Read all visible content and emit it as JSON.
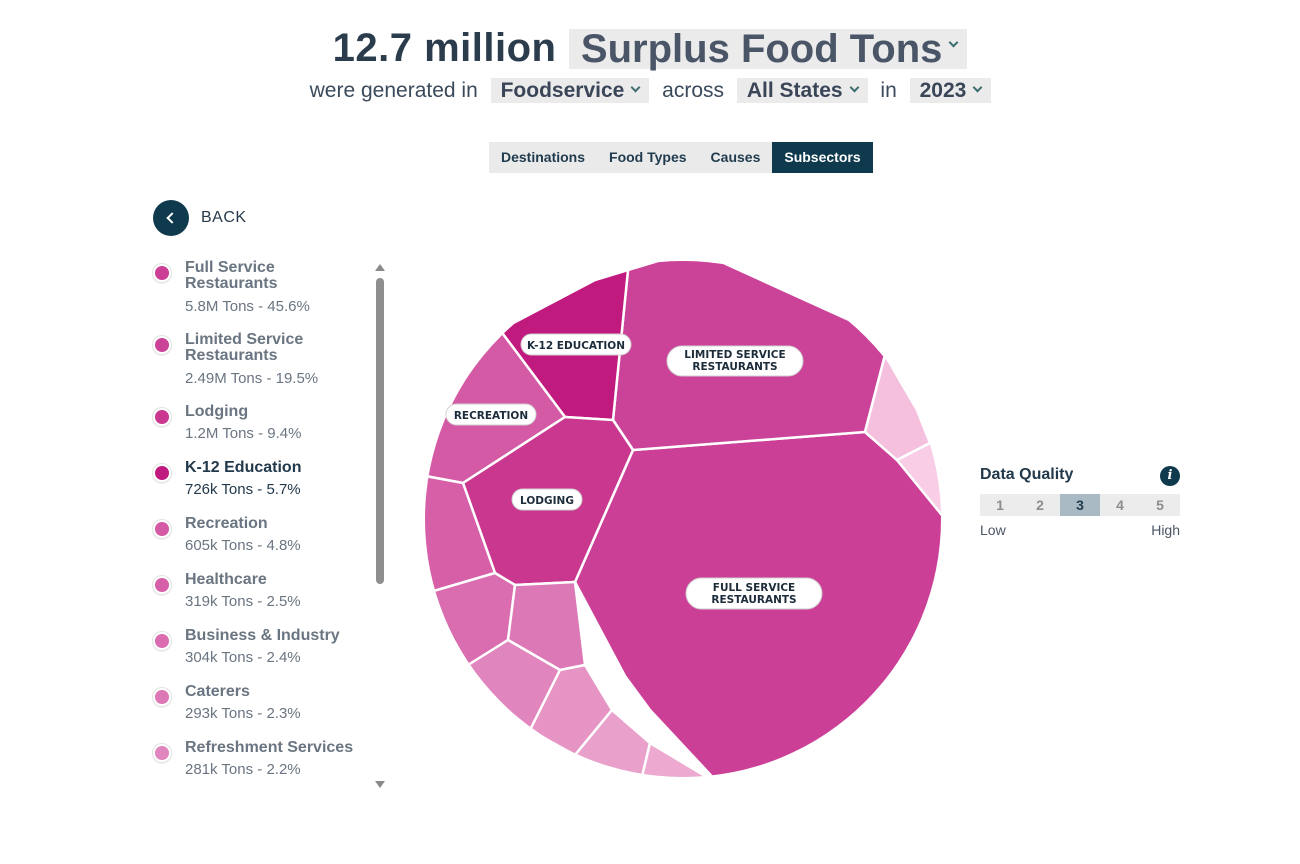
{
  "header": {
    "total": "12.7 million",
    "metric": "Surplus Food Tons",
    "text_generated": "were generated in",
    "sector": "Foodservice",
    "text_across": "across",
    "region": "All States",
    "text_in": "in",
    "year": "2023"
  },
  "tabs": [
    {
      "label": "Destinations",
      "active": false
    },
    {
      "label": "Food Types",
      "active": false
    },
    {
      "label": "Causes",
      "active": false
    },
    {
      "label": "Subsectors",
      "active": true
    }
  ],
  "back_label": "BACK",
  "legend": [
    {
      "name": "Full Service Restaurants",
      "value": "5.8M Tons - 45.6%",
      "color": "#cb3f96"
    },
    {
      "name": "Limited Service Restaurants",
      "value": "2.49M Tons - 19.5%",
      "color": "#cb4398"
    },
    {
      "name": "Lodging",
      "value": "1.2M Tons - 9.4%",
      "color": "#c9378f"
    },
    {
      "name": "K-12 Education",
      "value": "726k Tons - 5.7%",
      "color": "#c11a7e"
    },
    {
      "name": "Recreation",
      "value": "605k Tons - 4.8%",
      "color": "#d45aa5"
    },
    {
      "name": "Healthcare",
      "value": "319k Tons - 2.5%",
      "color": "#d65fa8"
    },
    {
      "name": "Business & Industry",
      "value": "304k Tons - 2.4%",
      "color": "#da6cb0"
    },
    {
      "name": "Caterers",
      "value": "293k Tons - 2.3%",
      "color": "#dd78b6"
    },
    {
      "name": "Refreshment Services",
      "value": "281k Tons - 2.2%",
      "color": "#e085bd"
    }
  ],
  "chart_data": {
    "type": "voronoi-treemap",
    "unit": "tons",
    "cells": [
      {
        "name": "Full Service Restaurants",
        "label": "FULL SERVICE RESTAURANTS",
        "value": 5800000,
        "percent": 45.6,
        "color": "#cb3f96"
      },
      {
        "name": "Limited Service Restaurants",
        "label": "LIMITED SERVICE RESTAURANTS",
        "value": 2490000,
        "percent": 19.5,
        "color": "#cb4398"
      },
      {
        "name": "Lodging",
        "label": "LODGING",
        "value": 1200000,
        "percent": 9.4,
        "color": "#c9378f"
      },
      {
        "name": "K-12 Education",
        "label": "K-12 EDUCATION",
        "value": 726000,
        "percent": 5.7,
        "color": "#c11a7e"
      },
      {
        "name": "Recreation",
        "label": "RECREATION",
        "value": 605000,
        "percent": 4.8,
        "color": "#d45aa5"
      },
      {
        "name": "Healthcare",
        "value": 319000,
        "percent": 2.5,
        "color": "#d65fa8"
      },
      {
        "name": "Business & Industry",
        "value": 304000,
        "percent": 2.4,
        "color": "#da6cb0"
      },
      {
        "name": "Caterers",
        "value": 293000,
        "percent": 2.3,
        "color": "#dd78b6"
      },
      {
        "name": "Refreshment Services",
        "value": 281000,
        "percent": 2.2,
        "color": "#e085bd"
      },
      {
        "name": "",
        "value": null,
        "color": "#e594c4"
      },
      {
        "name": "",
        "value": null,
        "color": "#e9a1cb"
      },
      {
        "name": "",
        "value": null,
        "color": "#f0b6d8"
      },
      {
        "name": "",
        "value": null,
        "color": "#f4c0de"
      },
      {
        "name": "",
        "value": null,
        "color": "#f8cde5"
      }
    ]
  },
  "data_quality": {
    "title": "Data Quality",
    "info_icon": "info-icon",
    "scale": [
      "1",
      "2",
      "3",
      "4",
      "5"
    ],
    "selected": "3",
    "low_label": "Low",
    "high_label": "High"
  }
}
